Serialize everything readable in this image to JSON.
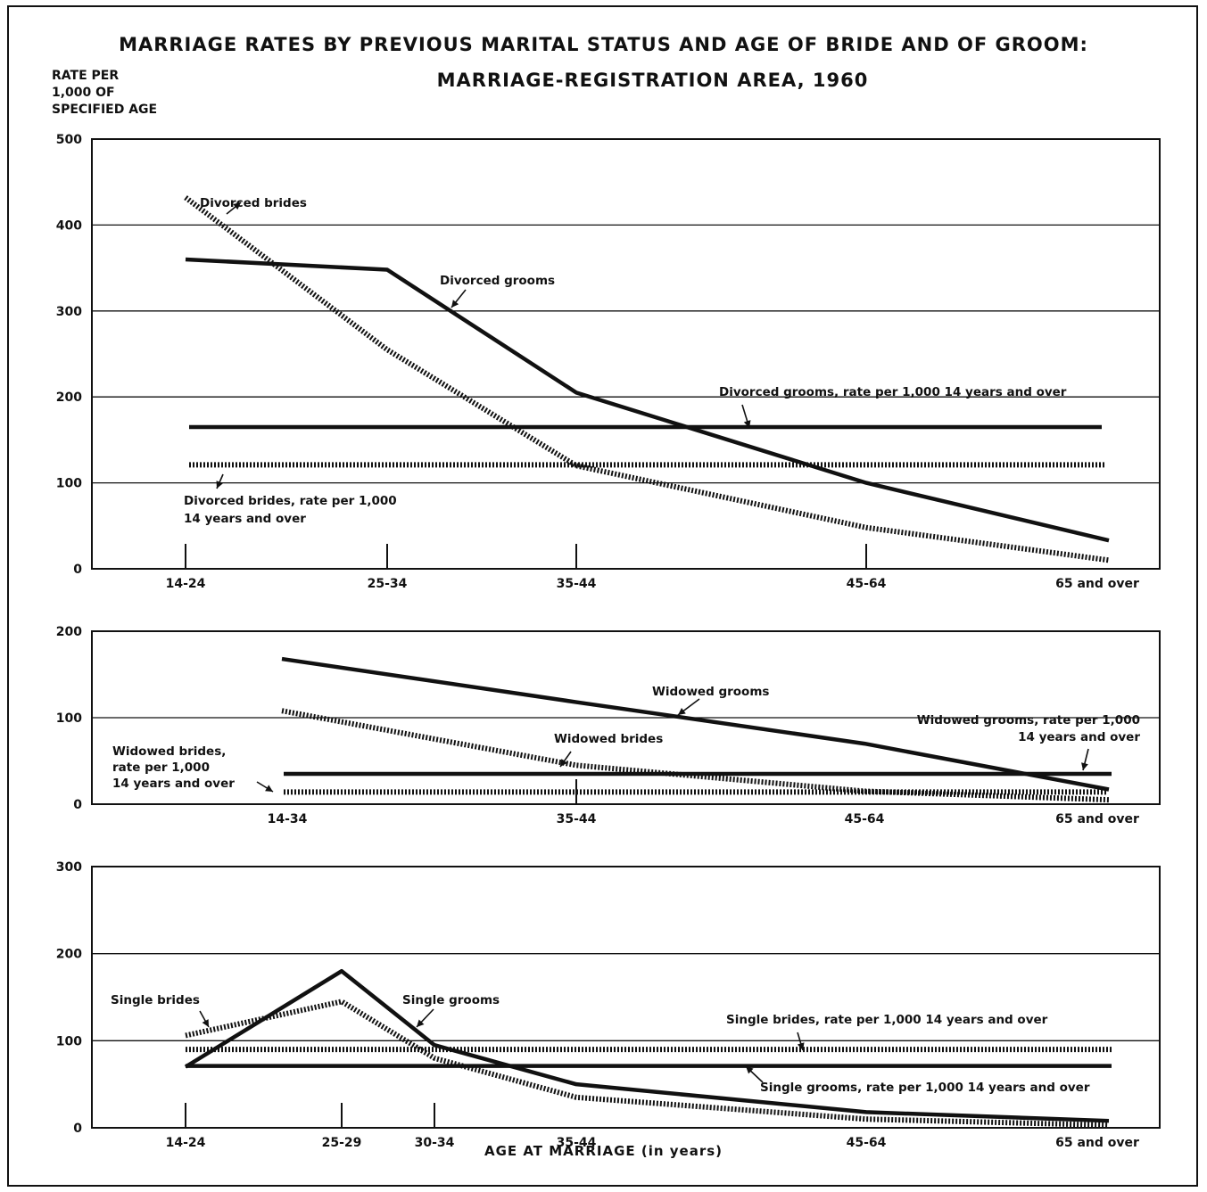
{
  "title_line1": "MARRIAGE RATES BY PREVIOUS MARITAL STATUS AND AGE OF BRIDE AND OF GROOM:",
  "title_line2": "MARRIAGE-REGISTRATION AREA, 1960",
  "y_axis_label": "RATE PER\n1,000 OF\nSPECIFIED AGE",
  "x_axis_title": "AGE AT MARRIAGE (in years)",
  "colors": {
    "ink": "#111111",
    "background": "#ffffff"
  },
  "chart_data": [
    {
      "type": "line",
      "panel": "divorced",
      "ylim": [
        0,
        500
      ],
      "yticks": [
        0,
        100,
        200,
        300,
        400,
        500
      ],
      "categories": [
        "14-24",
        "25-34",
        "35-44",
        "45-64",
        "65 and over"
      ],
      "grid": true,
      "series": [
        {
          "name": "Divorced brides",
          "style": "dashed",
          "values": [
            432,
            255,
            120,
            48,
            10
          ]
        },
        {
          "name": "Divorced grooms",
          "style": "solid",
          "values": [
            360,
            348,
            205,
            100,
            33
          ]
        },
        {
          "name": "Divorced grooms, rate per 1,000 14 years and over",
          "style": "solid",
          "constant": 165
        },
        {
          "name": "Divorced brides, rate per 1,000 14 years and over",
          "style": "dashed",
          "constant": 121
        }
      ],
      "annotations": [
        {
          "text": "Divorced brides"
        },
        {
          "text": "Divorced grooms"
        },
        {
          "text": "Divorced grooms, rate per 1,000 14 years and over"
        },
        {
          "lines": [
            "Divorced brides, rate per 1,000",
            "14 years and over"
          ]
        }
      ]
    },
    {
      "type": "line",
      "panel": "widowed",
      "ylim": [
        0,
        200
      ],
      "yticks": [
        0,
        100,
        200
      ],
      "categories": [
        "14-34",
        "35-44",
        "45-64",
        "65 and over"
      ],
      "grid": true,
      "series": [
        {
          "name": "Widowed grooms",
          "style": "solid",
          "values": [
            168,
            118,
            70,
            17
          ]
        },
        {
          "name": "Widowed brides",
          "style": "dashed",
          "values": [
            108,
            45,
            15,
            5
          ]
        },
        {
          "name": "Widowed grooms, rate per 1,000 14 years and over",
          "style": "solid",
          "constant": 35
        },
        {
          "name": "Widowed brides, rate per 1,000 14 years and over",
          "style": "dashed",
          "constant": 14
        }
      ],
      "annotations": [
        {
          "text": "Widowed grooms"
        },
        {
          "text": "Widowed brides"
        },
        {
          "lines": [
            "Widowed grooms, rate per 1,000",
            "14 years and over"
          ]
        },
        {
          "lines": [
            "Widowed brides,",
            "rate per 1,000",
            "14 years and over"
          ]
        }
      ]
    },
    {
      "type": "line",
      "panel": "single",
      "ylim": [
        0,
        300
      ],
      "yticks": [
        0,
        100,
        200,
        300
      ],
      "categories": [
        "14-24",
        "25-29",
        "30-34",
        "35-44",
        "45-64",
        "65 and over"
      ],
      "grid": true,
      "series": [
        {
          "name": "Single brides",
          "style": "dashed",
          "values": [
            106,
            145,
            80,
            35,
            10,
            3
          ]
        },
        {
          "name": "Single grooms",
          "style": "solid",
          "values": [
            70,
            180,
            95,
            50,
            18,
            8
          ]
        },
        {
          "name": "Single brides, rate per 1,000 14 years and over",
          "style": "dashed",
          "constant": 90
        },
        {
          "name": "Single grooms, rate per 1,000 14 years and over",
          "style": "solid",
          "constant": 71
        }
      ],
      "annotations": [
        {
          "text": "Single brides"
        },
        {
          "text": "Single grooms"
        },
        {
          "text": "Single brides, rate per 1,000 14 years and over"
        },
        {
          "text": "Single grooms, rate per 1,000 14 years and over"
        }
      ]
    }
  ]
}
